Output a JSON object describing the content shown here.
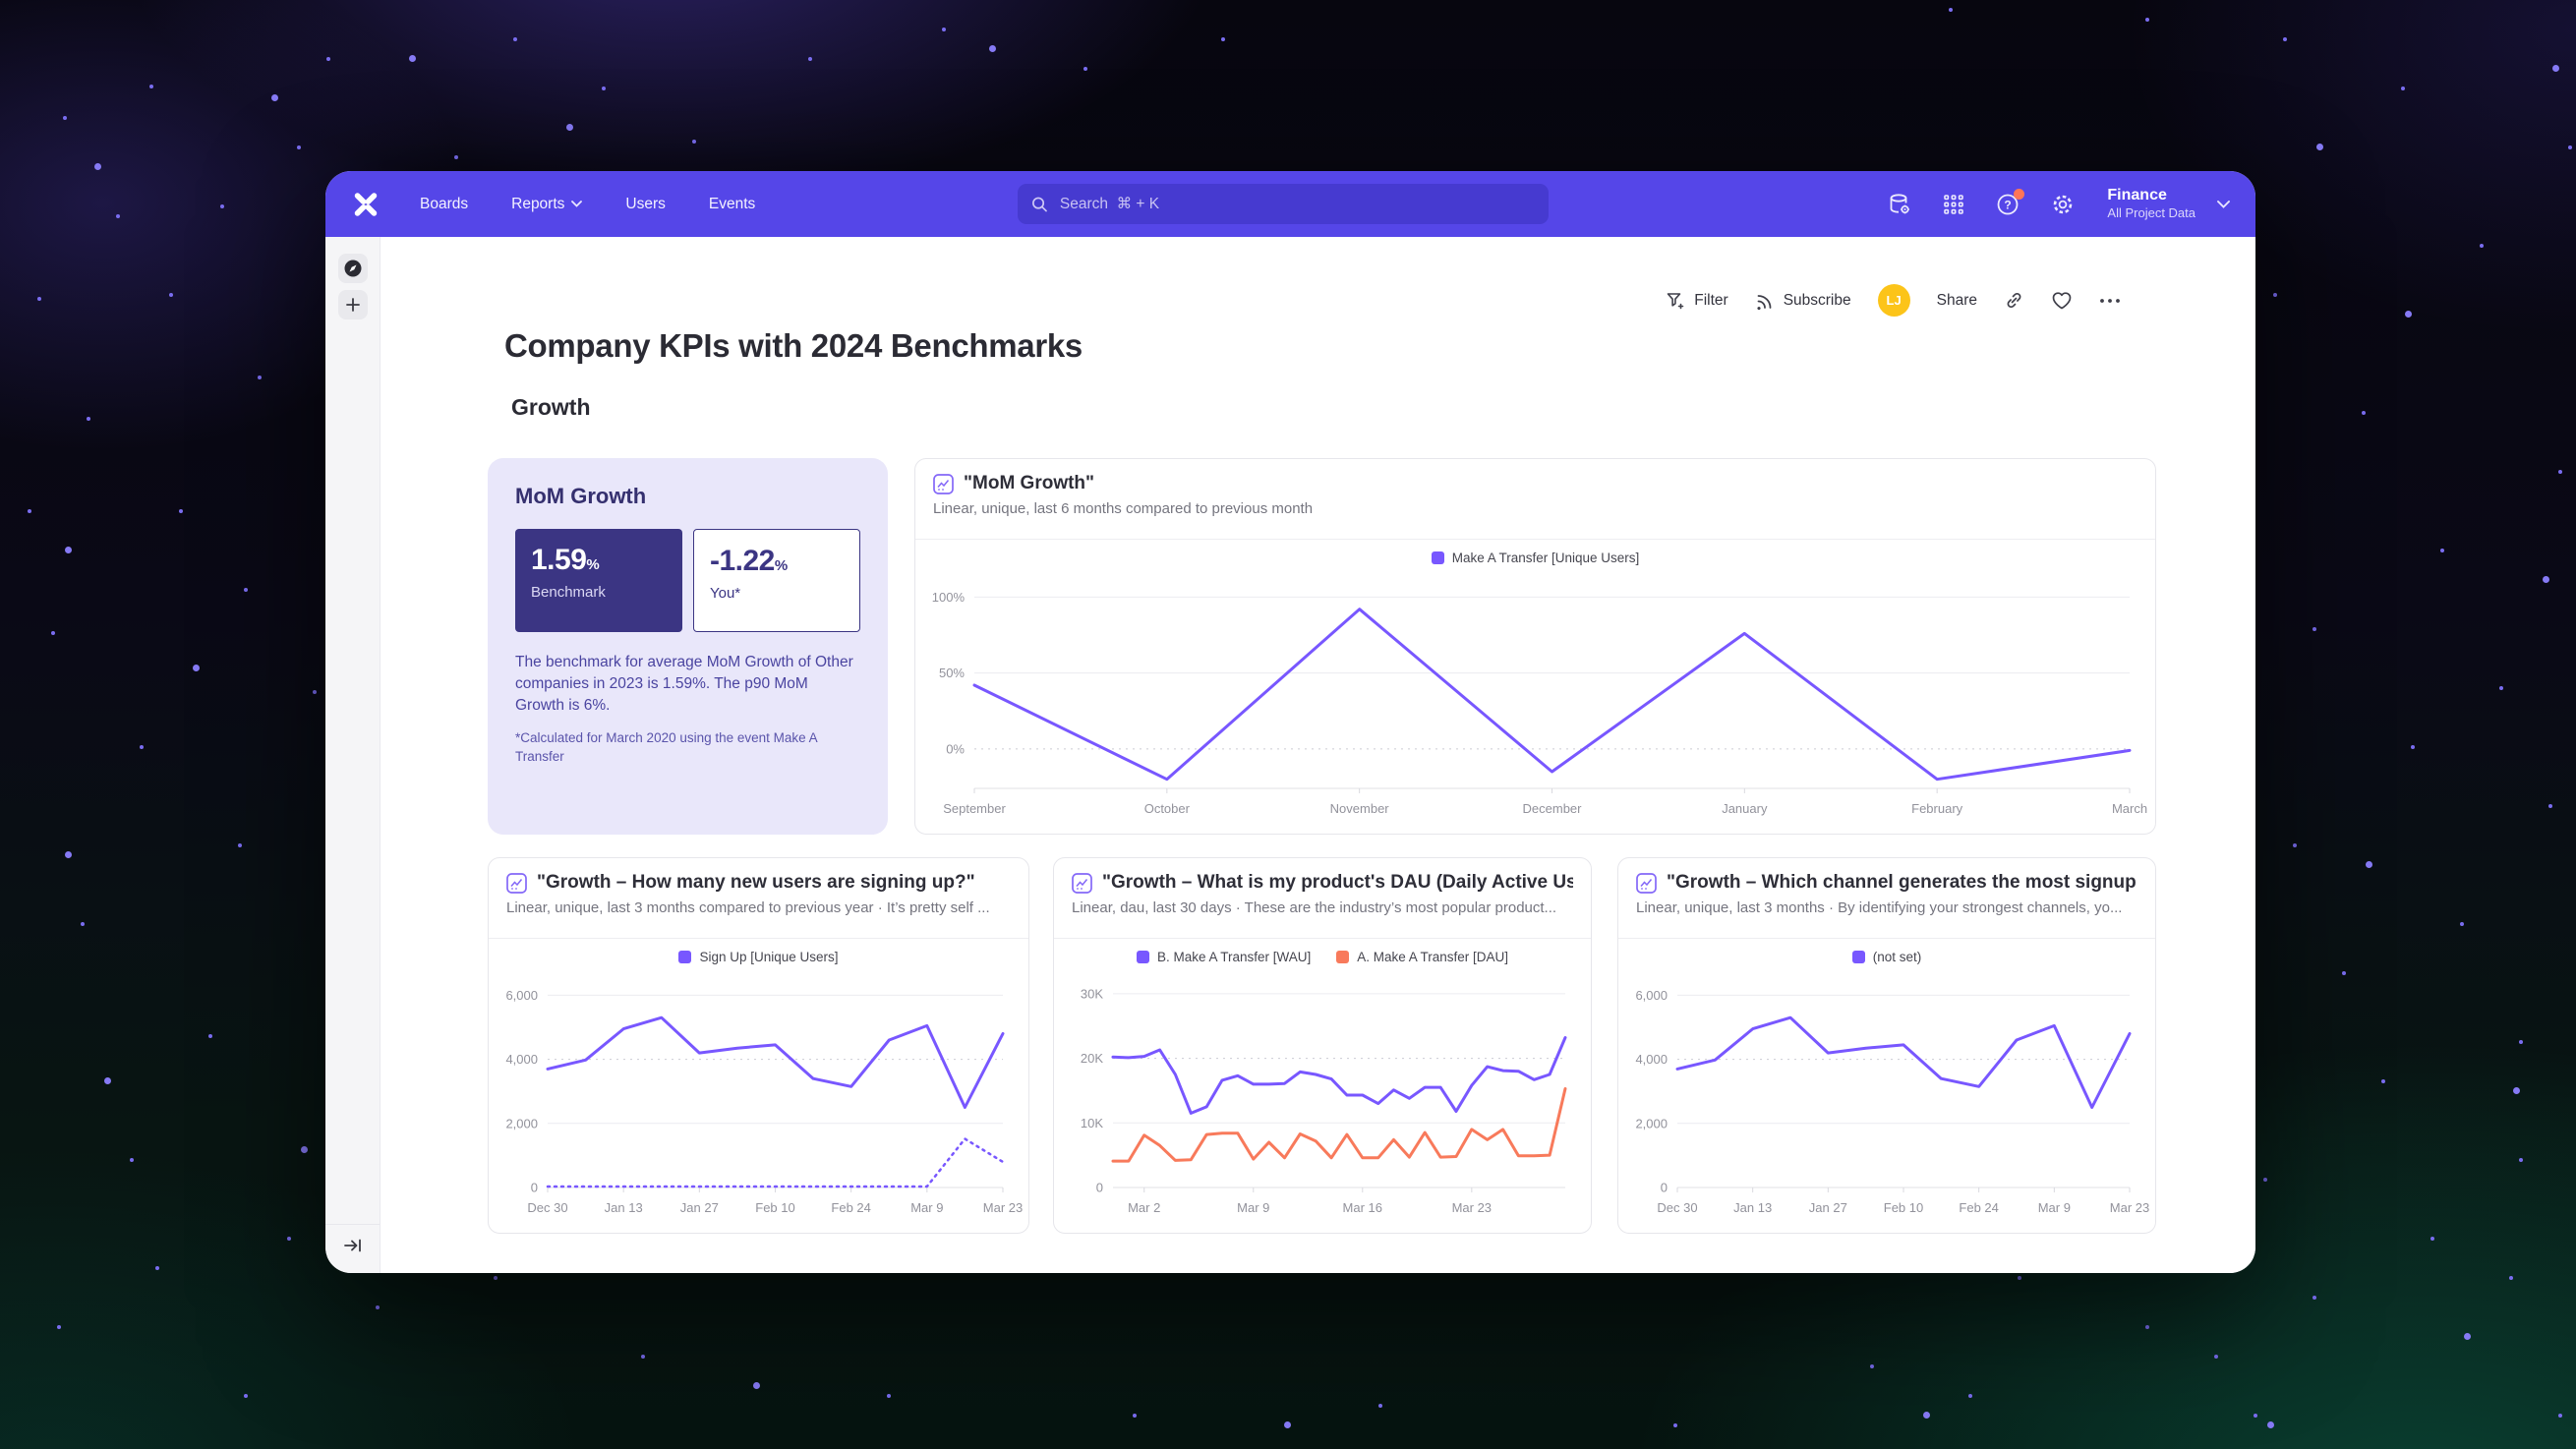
{
  "nav": {
    "items": [
      "Boards",
      "Reports",
      "Users",
      "Events"
    ],
    "search": {
      "placeholder": "Search  ⌘ + K"
    },
    "project": {
      "name": "Finance",
      "scope": "All Project Data"
    }
  },
  "toolbar": {
    "filter_label": "Filter",
    "subscribe_label": "Subscribe",
    "avatar_initials": "LJ",
    "share_label": "Share"
  },
  "page": {
    "title": "Company KPIs with 2024 Benchmarks",
    "section": "Growth"
  },
  "benchmark_card": {
    "title": "MoM Growth",
    "benchmark_value": "1.59",
    "benchmark_unit": "%",
    "benchmark_label": "Benchmark",
    "you_value": "-1.22",
    "you_unit": "%",
    "you_label": "You*",
    "description": "The benchmark for average MoM Growth of Other companies in 2023 is 1.59%. The p90 MoM Growth is 6%.",
    "footnote": "*Calculated for March 2020 using the event Make A Transfer"
  },
  "colors": {
    "nav": "#5546e8",
    "accent_purple": "#7857ff",
    "accent_orange": "#f87a5b",
    "benchmark_dark": "#3b3583",
    "card_lavender": "#e9e7fa",
    "avatar_yellow": "#fcc419",
    "notification_coral": "#ff7557"
  },
  "chart_data": [
    {
      "type": "line",
      "title": "\"MoM Growth\"",
      "subtitle": "Linear, unique, last 6 months compared to previous month",
      "ylim": [
        -26,
        108
      ],
      "yticks": [
        {
          "v": 0,
          "label": "0%",
          "dashed": true
        },
        {
          "v": 50,
          "label": "50%"
        },
        {
          "v": 100,
          "label": "100%"
        }
      ],
      "xticks": [
        {
          "i": 0,
          "label": "September"
        },
        {
          "i": 1,
          "label": "October"
        },
        {
          "i": 2,
          "label": "November"
        },
        {
          "i": 3,
          "label": "December"
        },
        {
          "i": 4,
          "label": "January"
        },
        {
          "i": 5,
          "label": "February"
        },
        {
          "i": 6,
          "label": "March"
        }
      ],
      "series": [
        {
          "name": "Make A Transfer [Unique Users]",
          "color": "#7857ff",
          "values": [
            42,
            -20,
            92,
            -15,
            76,
            -20,
            -1
          ]
        }
      ]
    },
    {
      "type": "line",
      "title": "\"Growth – How many new users are signing up?\"",
      "subtitle": "Linear, unique, last 3 months compared to previous year · It’s pretty self ...",
      "ylim": [
        0,
        6350
      ],
      "yticks": [
        {
          "v": 0,
          "label": "0"
        },
        {
          "v": 2000,
          "label": "2,000"
        },
        {
          "v": 4000,
          "label": "4,000",
          "dashed": true
        },
        {
          "v": 6000,
          "label": "6,000"
        }
      ],
      "xticks": [
        {
          "i": 0,
          "label": "Dec 30"
        },
        {
          "i": 2,
          "label": "Jan 13"
        },
        {
          "i": 4,
          "label": "Jan 27"
        },
        {
          "i": 6,
          "label": "Feb 10"
        },
        {
          "i": 8,
          "label": "Feb 24"
        },
        {
          "i": 10,
          "label": "Mar 9"
        },
        {
          "i": 12,
          "label": "Mar 23"
        }
      ],
      "series": [
        {
          "name": "Sign Up [Unique Users]",
          "color": "#7857ff",
          "values": [
            3700,
            3980,
            4950,
            5300,
            4200,
            4350,
            4450,
            3400,
            3150,
            4600,
            5050,
            2500,
            4800
          ]
        },
        {
          "name": "Sign Up [Unique Users] (previous year)",
          "color": "#7857ff",
          "dotted": true,
          "hide_legend": true,
          "values": [
            30,
            30,
            30,
            30,
            30,
            30,
            30,
            30,
            30,
            30,
            30,
            1520,
            800
          ]
        }
      ]
    },
    {
      "type": "line",
      "title": "\"Growth – What is my product's DAU (Daily Active Us...",
      "subtitle": "Linear, dau, last 30 days · These are the industry’s most popular product...",
      "ylim": [
        0,
        31500
      ],
      "yticks": [
        {
          "v": 0,
          "label": "0"
        },
        {
          "v": 10000,
          "label": "10K"
        },
        {
          "v": 20000,
          "label": "20K",
          "dashed": true
        },
        {
          "v": 30000,
          "label": "30K"
        }
      ],
      "xticks": [
        {
          "i": 2,
          "label": "Mar 2"
        },
        {
          "i": 9,
          "label": "Mar 9"
        },
        {
          "i": 16,
          "label": "Mar 16"
        },
        {
          "i": 23,
          "label": "Mar 23"
        }
      ],
      "series": [
        {
          "name": "B. Make A Transfer [WAU]",
          "color": "#7857ff",
          "values": [
            20200,
            20100,
            20300,
            21300,
            17500,
            11500,
            12500,
            16600,
            17300,
            16000,
            16000,
            16100,
            17900,
            17500,
            16800,
            14300,
            14300,
            13000,
            15100,
            13800,
            15500,
            15500,
            11800,
            15800,
            18700,
            18100,
            18000,
            16700,
            17500,
            23200
          ]
        },
        {
          "name": "A. Make A Transfer [DAU]",
          "color": "#f87a5b",
          "values": [
            4100,
            4100,
            8100,
            6500,
            4200,
            4300,
            8200,
            8400,
            8400,
            4400,
            7000,
            4600,
            8300,
            7200,
            4600,
            8200,
            4600,
            4600,
            7400,
            4700,
            8500,
            4700,
            4800,
            9000,
            7400,
            9000,
            4900,
            4900,
            5000,
            15300
          ]
        }
      ]
    },
    {
      "type": "line",
      "title": "\"Growth – Which channel generates the most signup...",
      "subtitle": "Linear, unique, last 3 months · By identifying your strongest channels, yo...",
      "ylim": [
        0,
        6350
      ],
      "yticks": [
        {
          "v": 0,
          "label": "0"
        },
        {
          "v": 2000,
          "label": "2,000"
        },
        {
          "v": 4000,
          "label": "4,000",
          "dashed": true
        },
        {
          "v": 6000,
          "label": "6,000"
        }
      ],
      "xticks": [
        {
          "i": 0,
          "label": "Dec 30"
        },
        {
          "i": 2,
          "label": "Jan 13"
        },
        {
          "i": 4,
          "label": "Jan 27"
        },
        {
          "i": 6,
          "label": "Feb 10"
        },
        {
          "i": 8,
          "label": "Feb 24"
        },
        {
          "i": 10,
          "label": "Mar 9"
        },
        {
          "i": 12,
          "label": "Mar 23"
        }
      ],
      "series": [
        {
          "name": "(not set)",
          "color": "#7857ff",
          "values": [
            3700,
            3980,
            4950,
            5300,
            4200,
            4350,
            4450,
            3400,
            3150,
            4600,
            5050,
            2500,
            4800
          ]
        }
      ]
    }
  ]
}
